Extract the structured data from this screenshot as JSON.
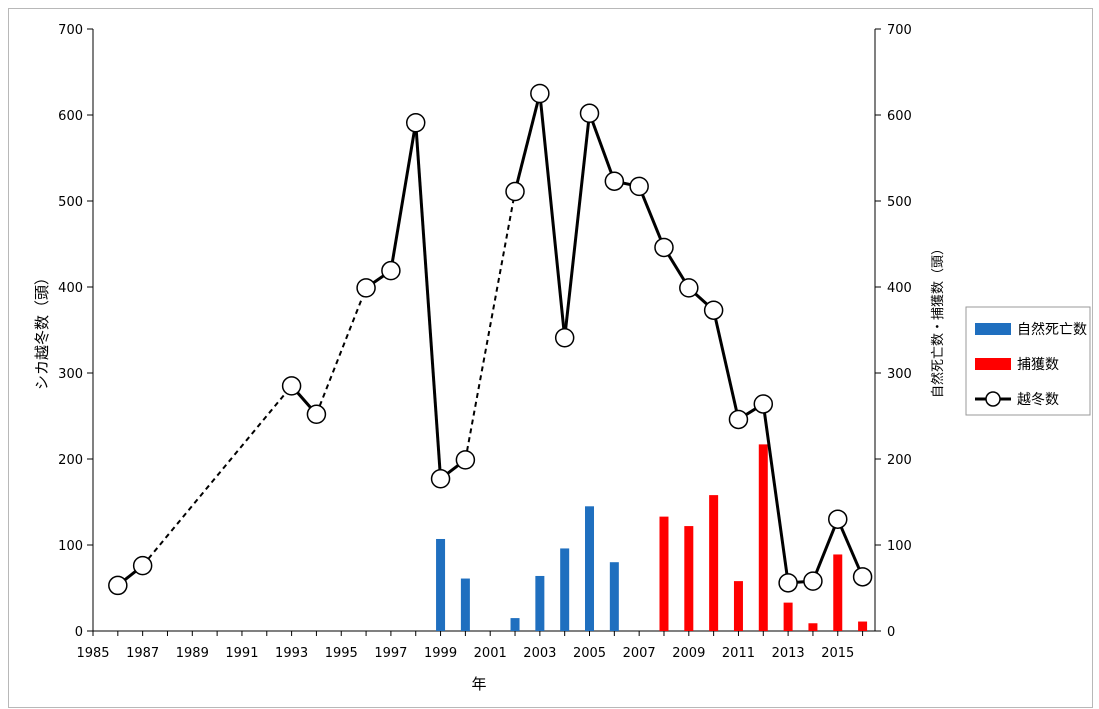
{
  "chart_data": {
    "type": "bar+line",
    "xlabel": "年",
    "ylabel_left": "シカ越冬数（頭）",
    "ylabel_right": "自然死亡数・捕獲数（頭）",
    "xlim": [
      1985,
      2016.5
    ],
    "ylim_left": [
      0,
      700
    ],
    "ylim_right": [
      0,
      700
    ],
    "x_ticks": [
      1985,
      1987,
      1989,
      1991,
      1993,
      1995,
      1997,
      1999,
      2001,
      2003,
      2005,
      2007,
      2009,
      2011,
      2013,
      2015
    ],
    "y_ticks": [
      0,
      100,
      200,
      300,
      400,
      500,
      600,
      700
    ],
    "grid": false,
    "legend_position": "right",
    "series": [
      {
        "name": "自然死亡数",
        "kind": "bar",
        "color": "#1f6fbf",
        "points": [
          {
            "x": 1999,
            "y": 107
          },
          {
            "x": 2000,
            "y": 61
          },
          {
            "x": 2002,
            "y": 15
          },
          {
            "x": 2003,
            "y": 64
          },
          {
            "x": 2004,
            "y": 96
          },
          {
            "x": 2005,
            "y": 145
          },
          {
            "x": 2006,
            "y": 80
          }
        ]
      },
      {
        "name": "捕獲数",
        "kind": "bar",
        "color": "#ff0000",
        "points": [
          {
            "x": 2008,
            "y": 133
          },
          {
            "x": 2009,
            "y": 122
          },
          {
            "x": 2010,
            "y": 158
          },
          {
            "x": 2011,
            "y": 58
          },
          {
            "x": 2012,
            "y": 217
          },
          {
            "x": 2013,
            "y": 33
          },
          {
            "x": 2014,
            "y": 9
          },
          {
            "x": 2015,
            "y": 89
          },
          {
            "x": 2016,
            "y": 11
          }
        ]
      },
      {
        "name": "越冬数",
        "kind": "line",
        "color": "#000000",
        "points": [
          {
            "x": 1986,
            "y": 53
          },
          {
            "x": 1987,
            "y": 76
          },
          {
            "x": 1993,
            "y": 285
          },
          {
            "x": 1994,
            "y": 252
          },
          {
            "x": 1996,
            "y": 399
          },
          {
            "x": 1997,
            "y": 419
          },
          {
            "x": 1998,
            "y": 591
          },
          {
            "x": 1999,
            "y": 177
          },
          {
            "x": 2000,
            "y": 199
          },
          {
            "x": 2002,
            "y": 511
          },
          {
            "x": 2003,
            "y": 625
          },
          {
            "x": 2004,
            "y": 341
          },
          {
            "x": 2005,
            "y": 602
          },
          {
            "x": 2006,
            "y": 523
          },
          {
            "x": 2007,
            "y": 517
          },
          {
            "x": 2008,
            "y": 446
          },
          {
            "x": 2009,
            "y": 399
          },
          {
            "x": 2010,
            "y": 373
          },
          {
            "x": 2011,
            "y": 246
          },
          {
            "x": 2012,
            "y": 264
          },
          {
            "x": 2013,
            "y": 56
          },
          {
            "x": 2014,
            "y": 58
          },
          {
            "x": 2015,
            "y": 130
          },
          {
            "x": 2016,
            "y": 63
          }
        ],
        "dashed_segments": [
          [
            1987,
            1993
          ],
          [
            1994,
            1996
          ],
          [
            2000,
            2002
          ]
        ]
      }
    ]
  }
}
